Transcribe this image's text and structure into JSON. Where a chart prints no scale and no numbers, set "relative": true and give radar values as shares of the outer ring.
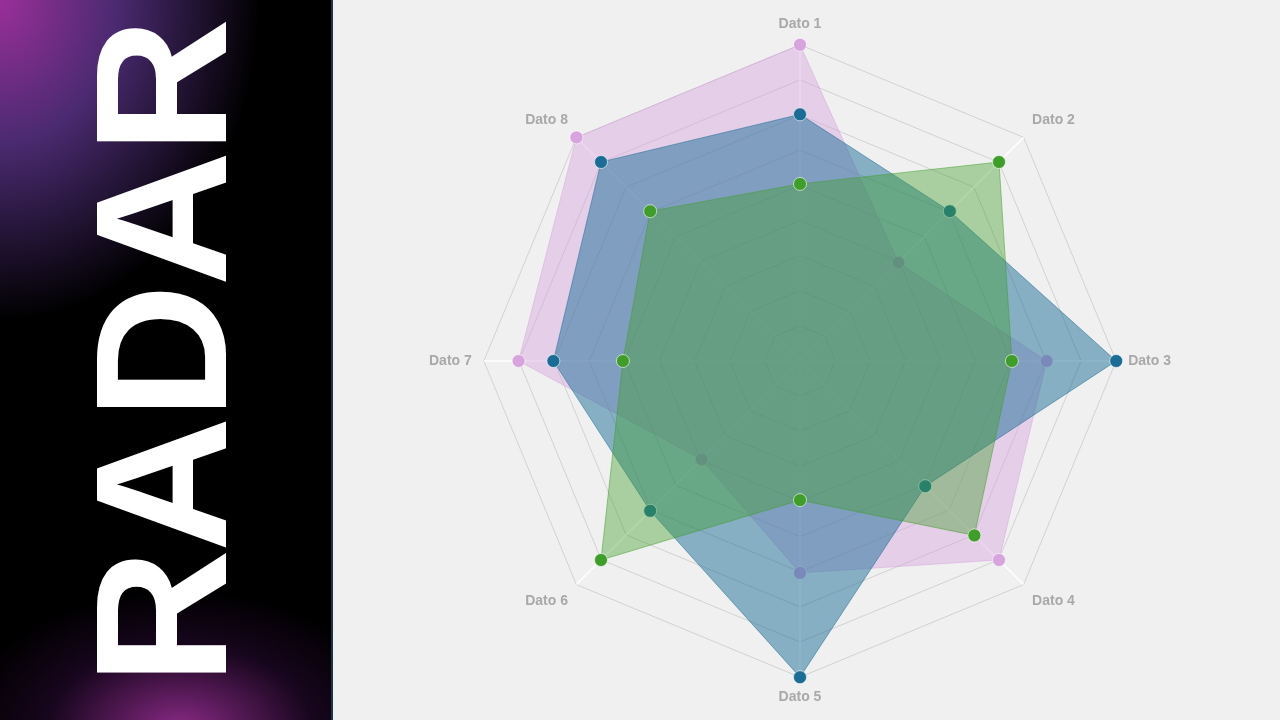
{
  "chart_data": {
    "type": "radar",
    "title": "RADAR",
    "categories": [
      "Dato 1",
      "Dato 2",
      "Dato 3",
      "Dato 4",
      "Dato 5",
      "Dato 6",
      "Dato 7",
      "Dato 8"
    ],
    "relative": true,
    "grid": true,
    "marker": "circle",
    "series": [
      {
        "color": "#d8a4de",
        "values": [
          1,
          0.44,
          0.78,
          0.89,
          0.67,
          0.44,
          0.89,
          1
        ]
      },
      {
        "color": "#1b6d96",
        "values": [
          0.78,
          0.67,
          1,
          0.56,
          1,
          0.67,
          0.78,
          0.89
        ]
      },
      {
        "color": "#3f9d2a",
        "values": [
          0.56,
          0.89,
          0.67,
          0.78,
          0.44,
          0.89,
          0.56,
          0.67
        ]
      }
    ]
  }
}
